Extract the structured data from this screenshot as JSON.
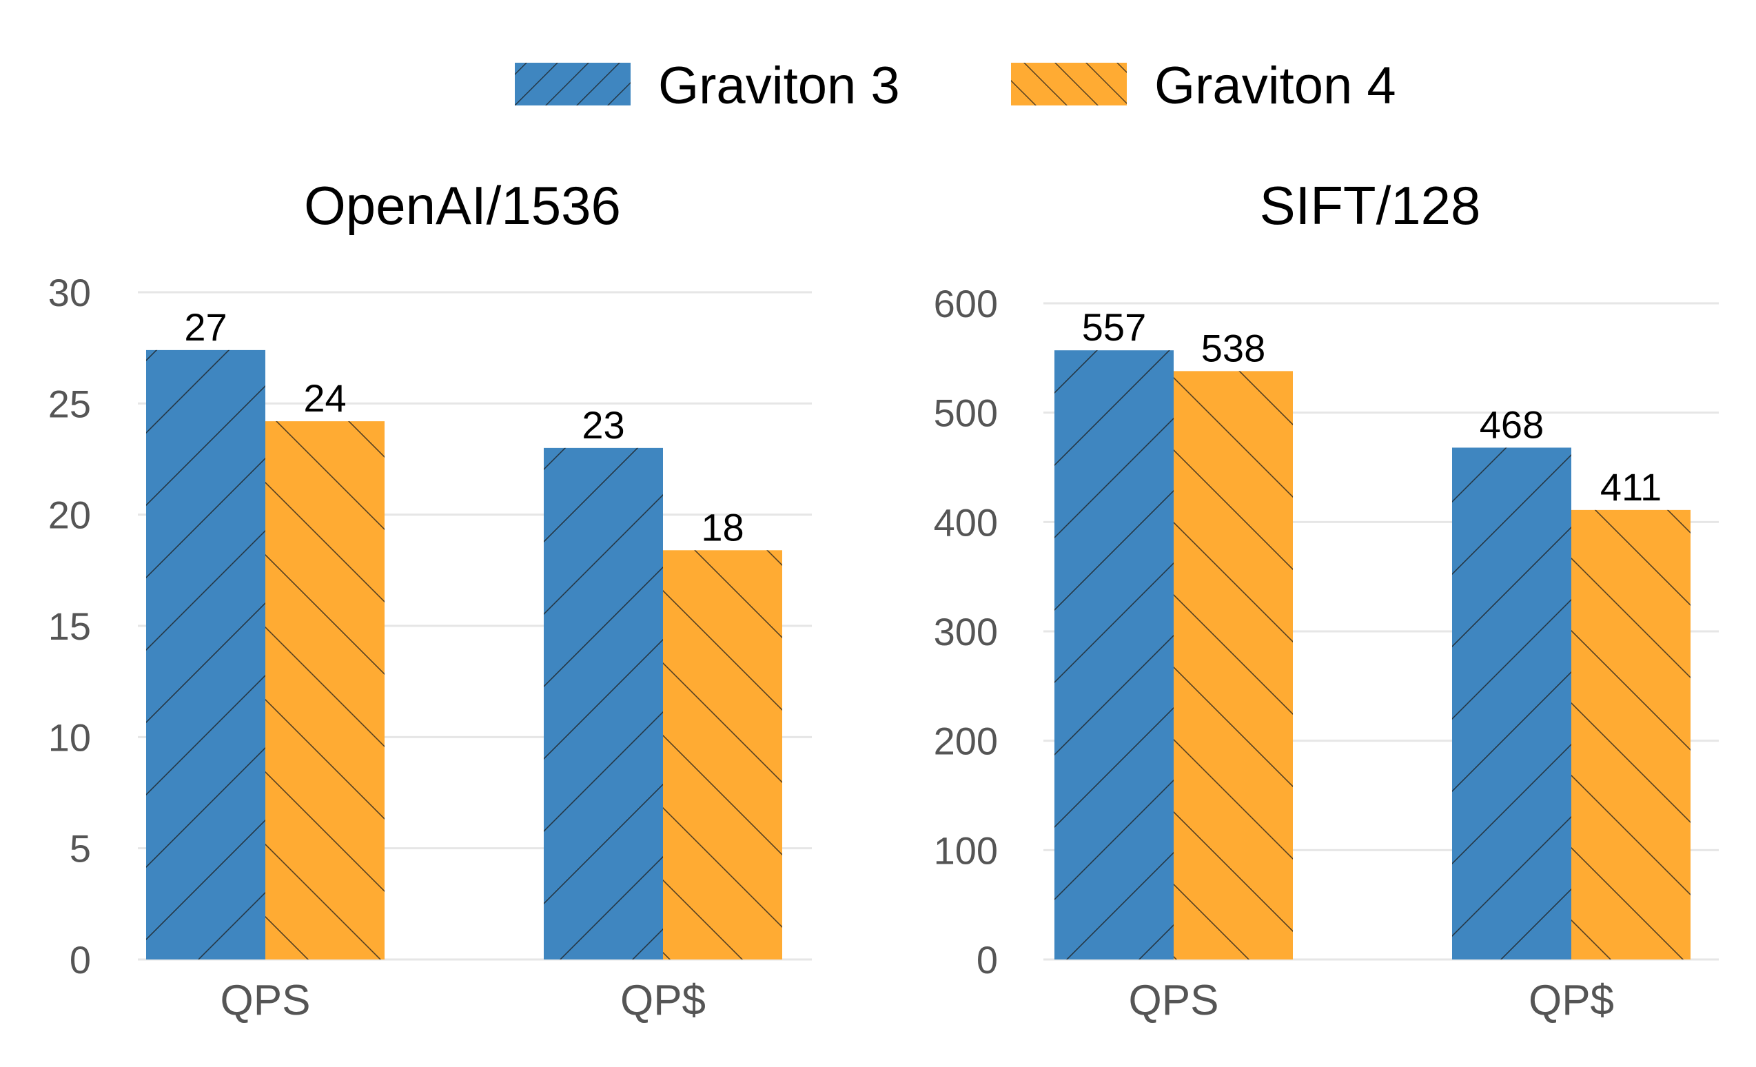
{
  "chart_data": [
    {
      "type": "bar",
      "title": "OpenAI/1536",
      "categories": [
        "QPS",
        "QP$"
      ],
      "series": [
        {
          "name": "Graviton 3",
          "values": [
            27.4,
            23.0
          ]
        },
        {
          "name": "Graviton 4",
          "values": [
            24.2,
            18.4
          ]
        }
      ],
      "value_labels": [
        [
          "27",
          "23"
        ],
        [
          "24",
          "18"
        ]
      ],
      "yticks": [
        "0",
        "5",
        "10",
        "15",
        "20",
        "25",
        "30"
      ],
      "ylim": [
        0,
        30
      ],
      "xlabel": "",
      "ylabel": "",
      "grid": true
    },
    {
      "type": "bar",
      "title": "SIFT/128",
      "categories": [
        "QPS",
        "QP$"
      ],
      "series": [
        {
          "name": "Graviton 3",
          "values": [
            557,
            468
          ]
        },
        {
          "name": "Graviton 4",
          "values": [
            538,
            411
          ]
        }
      ],
      "value_labels": [
        [
          "557",
          "468"
        ],
        [
          "538",
          "411"
        ]
      ],
      "yticks": [
        "0",
        "100",
        "200",
        "300",
        "400",
        "500",
        "600"
      ],
      "ylim": [
        0,
        600
      ],
      "xlabel": "",
      "ylabel": "",
      "grid": true
    }
  ],
  "legend": {
    "position": "top-center",
    "items": [
      {
        "label": "Graviton 3",
        "color": "#3f86c0",
        "hatch": "forward-diagonal"
      },
      {
        "label": "Graviton 4",
        "color": "#ffab33",
        "hatch": "backward-diagonal"
      }
    ]
  }
}
